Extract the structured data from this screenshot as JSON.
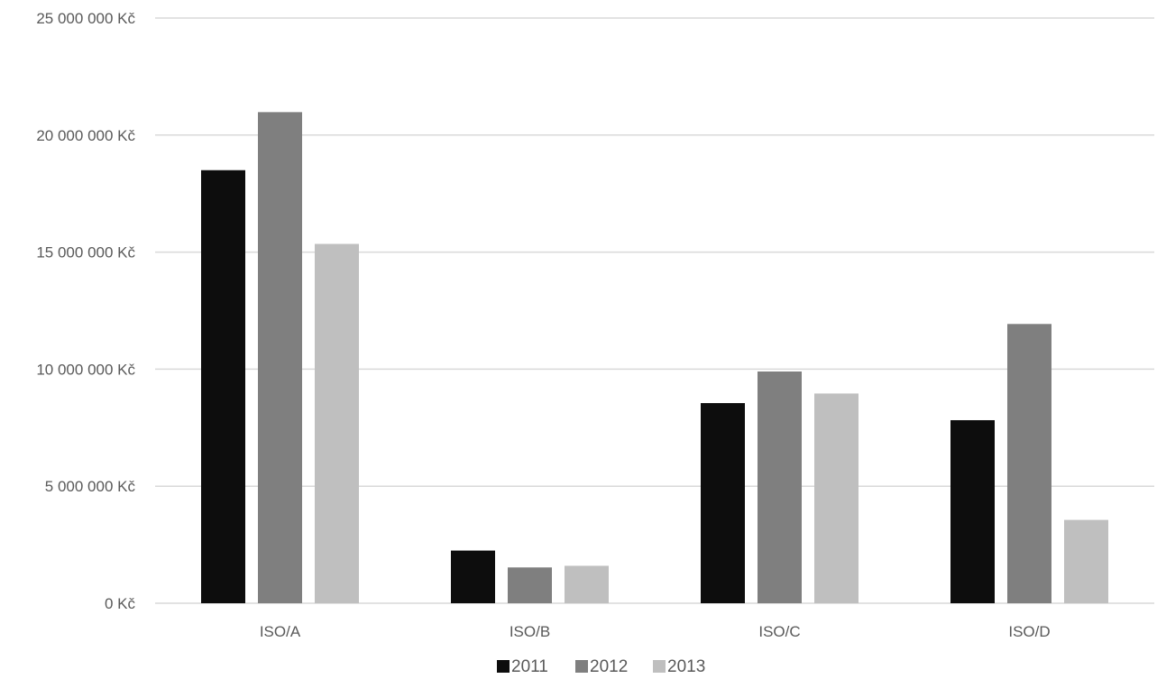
{
  "chart_data": {
    "type": "bar",
    "title": "",
    "xlabel": "",
    "ylabel": "",
    "categories": [
      "ISO/A",
      "ISO/B",
      "ISO/C",
      "ISO/D"
    ],
    "series": [
      {
        "name": "2011",
        "color": "#0d0d0d",
        "values": [
          18500000,
          2250000,
          8550000,
          7820000
        ]
      },
      {
        "name": "2012",
        "color": "#7f7f7f",
        "values": [
          20980000,
          1530000,
          9900000,
          11930000
        ]
      },
      {
        "name": "2013",
        "color": "#bfbfbf",
        "values": [
          15350000,
          1600000,
          8960000,
          3560000
        ]
      }
    ],
    "ylim": [
      0,
      25000000
    ],
    "yticks": [
      "0 Kč",
      "5 000 000 Kč",
      "10 000 000 Kč",
      "15 000 000 Kč",
      "20 000 000 Kč",
      "25 000 000 Kč"
    ],
    "ytick_values": [
      0,
      5000000,
      10000000,
      15000000,
      20000000,
      25000000
    ],
    "grid": true,
    "legend_position": "bottom"
  }
}
